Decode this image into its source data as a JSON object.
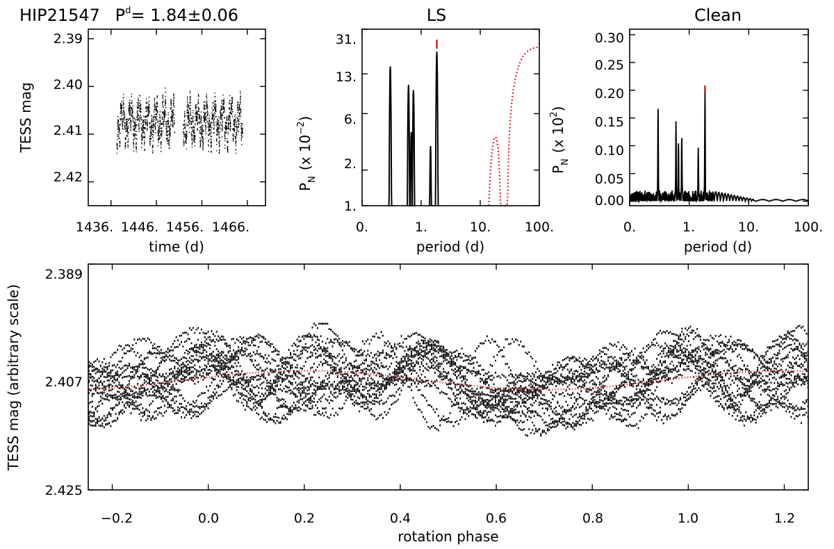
{
  "colors": {
    "data": "#000000",
    "model": "#e0242a",
    "marker": "#e0242a"
  },
  "header": {
    "star": "HIP21547",
    "period_symbol": "P",
    "period_superscript": "d",
    "period_value": "= 1.84±0.06"
  },
  "chart_data": [
    {
      "id": "lightcurve",
      "type": "scatter",
      "title": "",
      "xlabel": "time (d)",
      "ylabel": "TESS mag",
      "xlim": [
        1431,
        1470
      ],
      "ylim": [
        2.425,
        2.388
      ],
      "y_inverted": true,
      "x_tick_labels": [
        "1436.",
        "1446.",
        "1456.",
        "1466."
      ],
      "x_ticks": [
        1436,
        1446,
        1456,
        1466
      ],
      "y_tick_labels": [
        "2.39",
        "2.40",
        "2.41",
        "2.42"
      ],
      "y_ticks": [
        2.39,
        2.4,
        2.41,
        2.42
      ],
      "segments": [
        [
          1437.2,
          1449.9
        ],
        [
          1451.8,
          1464.9
        ]
      ],
      "mean_mag": 2.4075,
      "rotation_period": 1.84,
      "scatter_range": [
        2.399,
        2.414
      ]
    },
    {
      "id": "ls",
      "type": "line",
      "title": "LS",
      "xlabel": "period (d)",
      "ylabel": "P",
      "ylabel_sub": "N",
      "ylabel_scale": "(x 10",
      "ylabel_exp": "−2",
      "ylabel_close": ")",
      "x_scale": "log",
      "xlim": [
        0.1,
        100
      ],
      "x_ticks": [
        0.1,
        1,
        10,
        100
      ],
      "x_tick_labels": [
        "0.",
        "1.",
        "10.",
        "100."
      ],
      "y_scale": "log",
      "ylim": [
        1,
        31
      ],
      "y_ticks": [
        1,
        2,
        6,
        13,
        31
      ],
      "y_tick_labels": [
        "1.",
        "2.",
        "6.",
        "13.",
        "31."
      ],
      "peaks": [
        {
          "period": 0.3,
          "power": 15
        },
        {
          "period": 0.61,
          "power": 10.5
        },
        {
          "period": 0.68,
          "power": 4.2
        },
        {
          "period": 0.74,
          "power": 9.5
        },
        {
          "period": 1.44,
          "power": 3.2
        },
        {
          "period": 1.84,
          "power": 20
        }
      ],
      "window_function": [
        {
          "period": 14,
          "power": 1
        },
        {
          "period": 18,
          "power": 3.8
        },
        {
          "period": 22,
          "power": 1
        },
        {
          "period": 29,
          "power": 1
        },
        {
          "period": 40,
          "power": 13
        },
        {
          "period": 60,
          "power": 20
        },
        {
          "period": 100,
          "power": 22
        }
      ],
      "marked_period": 1.84
    },
    {
      "id": "clean",
      "type": "line",
      "title": "Clean",
      "xlabel": "period (d)",
      "ylabel": "P",
      "ylabel_sub": "N",
      "ylabel_scale": "(x 10",
      "ylabel_exp": "2",
      "ylabel_close": ")",
      "x_scale": "log",
      "xlim": [
        0.1,
        100
      ],
      "x_ticks": [
        0.1,
        1,
        10,
        100
      ],
      "x_tick_labels": [
        "0.",
        "1.",
        "10.",
        "100."
      ],
      "ylim": [
        -0.008,
        0.31
      ],
      "y_ticks": [
        0.0,
        0.05,
        0.1,
        0.15,
        0.2,
        0.25,
        0.3
      ],
      "y_tick_labels": [
        "0.00",
        "0.05",
        "0.10",
        "0.15",
        "0.20",
        "0.25",
        "0.30"
      ],
      "peaks": [
        {
          "period": 0.3,
          "power": 0.165
        },
        {
          "period": 0.6,
          "power": 0.135
        },
        {
          "period": 0.66,
          "power": 0.1
        },
        {
          "period": 0.75,
          "power": 0.11
        },
        {
          "period": 1.42,
          "power": 0.09
        },
        {
          "period": 1.84,
          "power": 0.19
        }
      ],
      "marked_period": 1.84
    },
    {
      "id": "phased",
      "type": "scatter",
      "title": "",
      "xlabel": "rotation phase",
      "ylabel": "TESS mag (arbitrary scale)",
      "xlim": [
        -0.25,
        1.25
      ],
      "x_ticks": [
        -0.2,
        0.0,
        0.2,
        0.4,
        0.6,
        0.8,
        1.0,
        1.2
      ],
      "x_tick_labels": [
        "−0.2",
        "0.0",
        "0.2",
        "0.4",
        "0.6",
        "0.8",
        "1.0",
        "1.2"
      ],
      "ylim": [
        2.425,
        2.389
      ],
      "y_inverted": true,
      "y_ticks": [
        2.389,
        2.407,
        2.425
      ],
      "y_tick_labels": [
        "2.389",
        "2.407",
        "2.425"
      ],
      "model": {
        "mean": 2.4075,
        "amplitude": 0.0015,
        "phase_of_max_brightness": 0.2
      },
      "scatter_range": [
        2.3985,
        2.4165
      ]
    }
  ]
}
